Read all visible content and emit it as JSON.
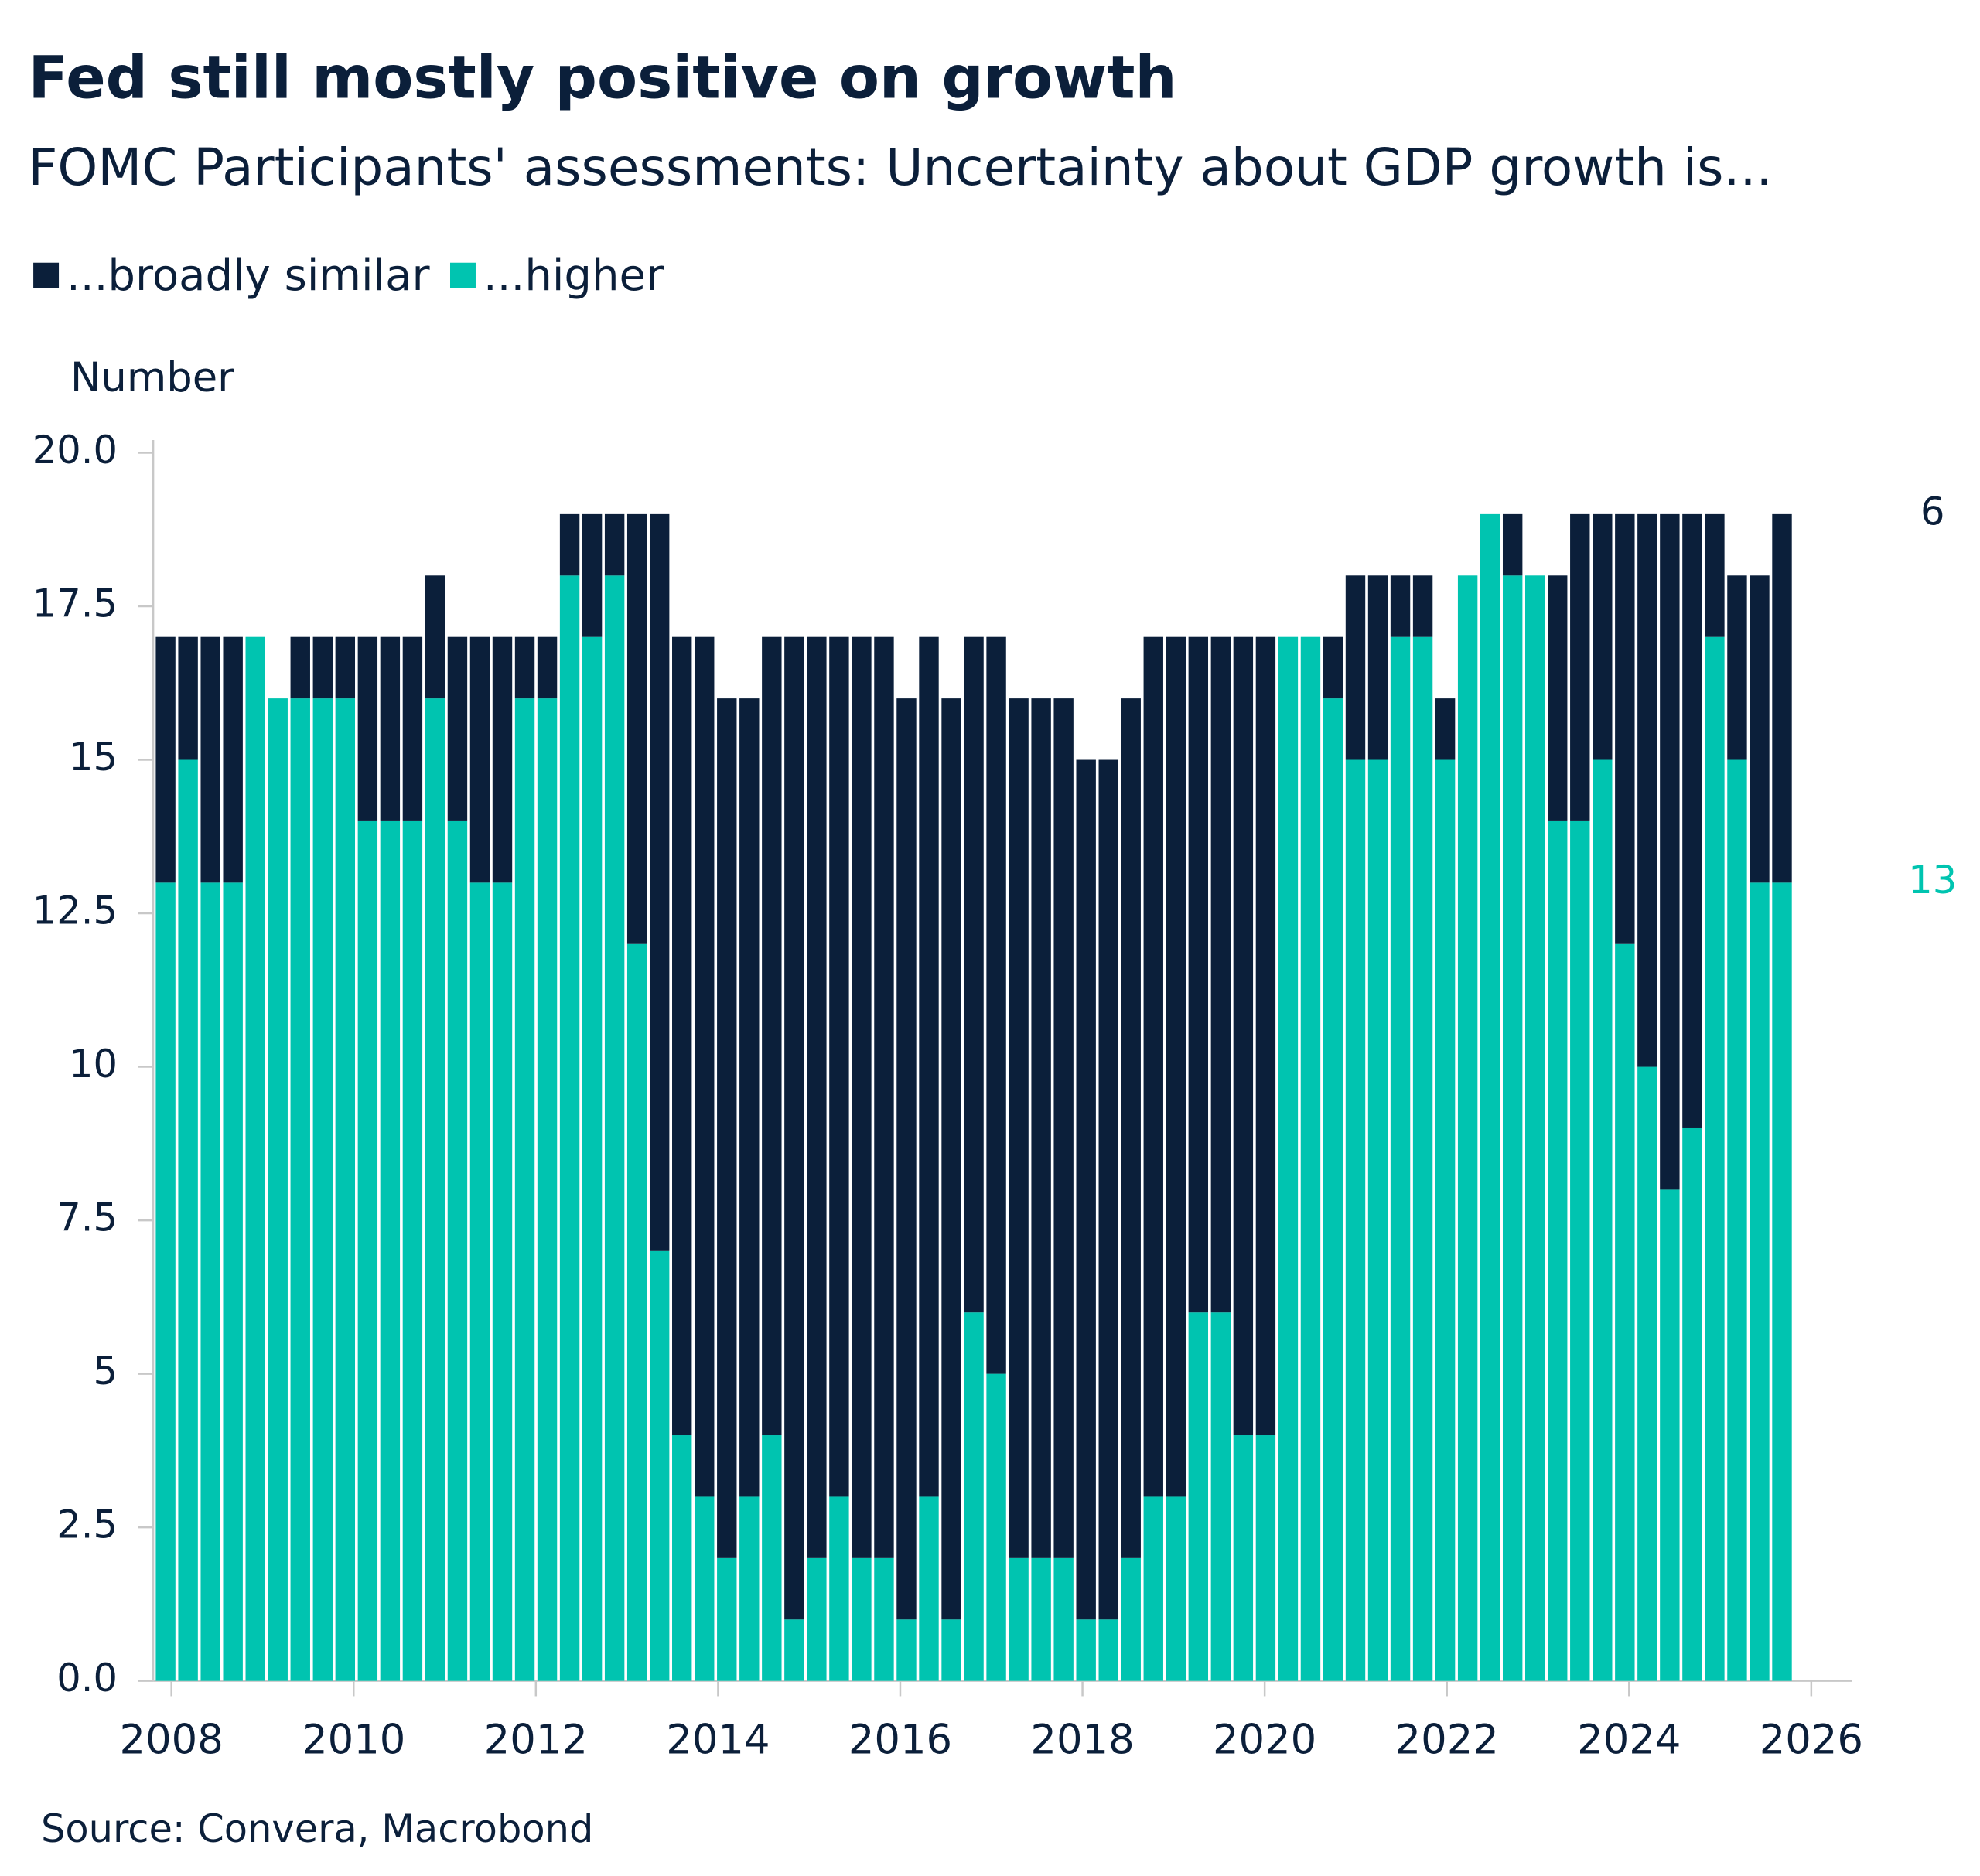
{
  "chart_data": {
    "type": "stacked-bar",
    "title": "Fed still mostly positive on growth",
    "subtitle": "FOMC Participants' assessments: Uncertainty about GDP growth is...",
    "y_label": "Number",
    "source": "Source: Convera, Macrobond",
    "categories": [
      null,
      null,
      null,
      null,
      null,
      null,
      null,
      null,
      null,
      null,
      null,
      null,
      null,
      null,
      null,
      null,
      null,
      null,
      null,
      null,
      null,
      null,
      null,
      null,
      null,
      null,
      null,
      null,
      null,
      null,
      null,
      null,
      null,
      null,
      null,
      null,
      null,
      null,
      null,
      null,
      null,
      null,
      null,
      null,
      null,
      null,
      null,
      null,
      null,
      null,
      null,
      null,
      null,
      null,
      null,
      null,
      null,
      null,
      null,
      null,
      null,
      null,
      null,
      null,
      null,
      null,
      null,
      null,
      null,
      null,
      null,
      null,
      null
    ],
    "series": [
      {
        "name": "...higher",
        "color": "#00c4b0",
        "values": [
          13,
          15,
          13,
          13,
          17,
          16,
          16,
          16,
          16,
          14,
          14,
          14,
          16,
          14,
          13,
          13,
          16,
          16,
          18,
          17,
          18,
          12,
          7,
          4,
          3,
          2,
          3,
          4,
          1,
          2,
          3,
          2,
          2,
          1,
          3,
          1,
          6,
          5,
          2,
          2,
          2,
          1,
          1,
          2,
          3,
          3,
          6,
          6,
          4,
          4,
          17,
          17,
          16,
          15,
          15,
          17,
          17,
          15,
          18,
          19,
          18,
          18,
          14,
          14,
          15,
          12,
          10,
          8,
          9,
          17,
          15,
          13,
          13
        ]
      },
      {
        "name": "...broadly similar",
        "color": "#0b1f3a",
        "values": [
          4,
          2,
          4,
          4,
          0,
          0,
          1,
          1,
          1,
          3,
          3,
          3,
          2,
          3,
          4,
          4,
          1,
          1,
          1,
          2,
          1,
          7,
          12,
          13,
          14,
          14,
          13,
          13,
          16,
          15,
          14,
          15,
          15,
          15,
          14,
          15,
          11,
          12,
          14,
          14,
          14,
          14,
          14,
          14,
          14,
          14,
          11,
          11,
          13,
          13,
          0,
          0,
          1,
          3,
          3,
          1,
          1,
          1,
          0,
          0,
          1,
          0,
          4,
          5,
          4,
          7,
          9,
          11,
          10,
          2,
          3,
          5,
          6
        ]
      }
    ],
    "legend_order": [
      1,
      0
    ],
    "ylim": [
      0,
      20
    ],
    "yticks": [
      {
        "value": 0,
        "label": "0.0"
      },
      2.5,
      5,
      7.5,
      10,
      12.5,
      15,
      17.5,
      {
        "value": 20,
        "label": "20.0"
      }
    ],
    "xlim": [
      2007.8,
      2026.45
    ],
    "xticks": [
      2008,
      2010,
      2012,
      2014,
      2016,
      2018,
      2020,
      2022,
      2024,
      2026
    ],
    "end_labels": true,
    "grid": false
  }
}
